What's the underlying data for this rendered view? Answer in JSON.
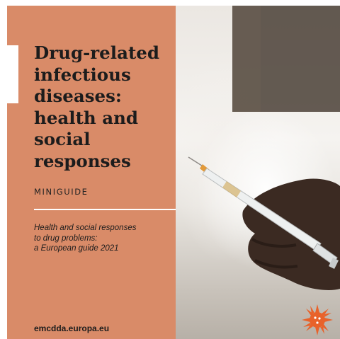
{
  "cover": {
    "title": "Drug-related\ninfectious\ndiseases:\nhealth and\nsocial\nresponses",
    "subtitle": "MINIGUIDE",
    "series": "Health and social responses\nto drug problems:\na European guide 2021",
    "url": "emcdda.europa.eu"
  },
  "colors": {
    "panel": "#d98b68",
    "logo": "#e8622a",
    "text": "#1c1c1c"
  },
  "icons": {
    "logo": "emcdda-star-logo"
  }
}
